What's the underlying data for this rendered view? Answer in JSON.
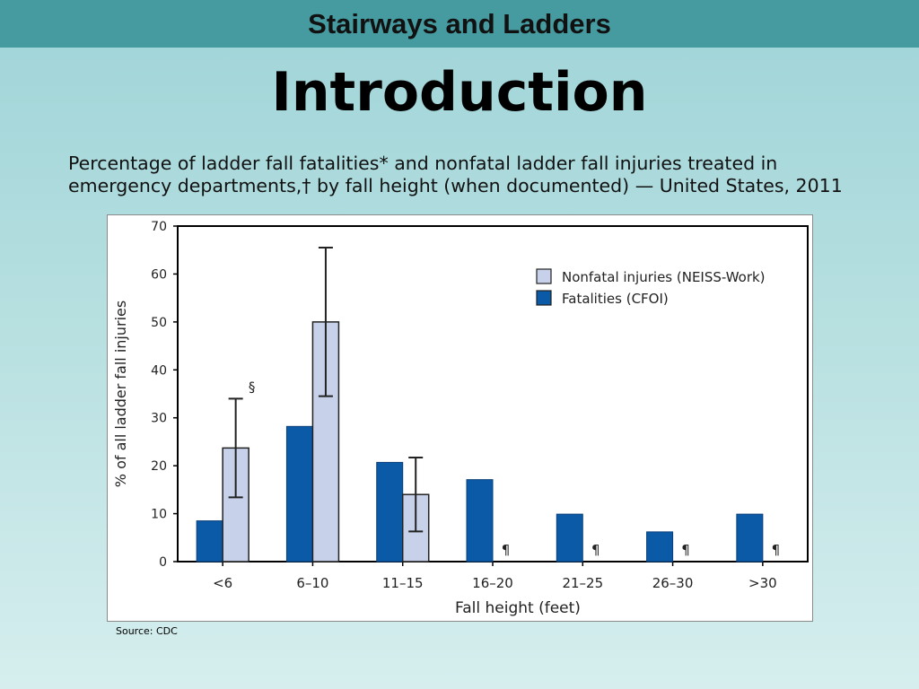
{
  "header": {
    "title": "Stairways and Ladders"
  },
  "slide": {
    "heading": "Introduction",
    "caption_line1": "Percentage of ladder fall fatalities* and nonfatal ladder fall injuries treated in",
    "caption_line2": "emergency departments,† by fall height (when documented) — United States, 2011",
    "source": "Source: CDC"
  },
  "colors": {
    "fatal": "#0b5aa8",
    "nonfatal": "#c7d2ea",
    "topbar": "#469ba1"
  },
  "chart_data": {
    "type": "bar",
    "xlabel": "Fall height (feet)",
    "ylabel": "% of all ladder fall injuries",
    "ylim": [
      0,
      70
    ],
    "yticks": [
      0,
      10,
      20,
      30,
      40,
      50,
      60,
      70
    ],
    "categories": [
      "<6",
      "6–10",
      "11–15",
      "16–20",
      "21–25",
      "26–30",
      ">30"
    ],
    "legend_position": "top-right",
    "grid": false,
    "series": [
      {
        "name": "Fatalities (CFOI)",
        "color": "#0b5aa8",
        "values": [
          8.5,
          28.2,
          20.7,
          17.1,
          9.9,
          6.2,
          9.9
        ]
      },
      {
        "name": "Nonfatal injuries (NEISS-Work)",
        "color": "#c7d2ea",
        "values": [
          23.7,
          50.0,
          14.0,
          null,
          null,
          null,
          null
        ],
        "error_low": [
          13.4,
          34.5,
          6.3,
          null,
          null,
          null,
          null
        ],
        "error_high": [
          34.0,
          65.5,
          21.7,
          null,
          null,
          null,
          null
        ]
      }
    ],
    "annotations": [
      {
        "category": "<6",
        "text": "§"
      },
      {
        "category": "16–20",
        "text": "¶"
      },
      {
        "category": "21–25",
        "text": "¶"
      },
      {
        "category": "26–30",
        "text": "¶"
      },
      {
        "category": ">30",
        "text": "¶"
      }
    ]
  }
}
